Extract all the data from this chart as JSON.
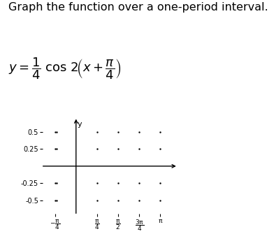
{
  "title": "Graph the function over a one-period interval.",
  "xlim": [
    -1.3,
    3.8
  ],
  "ylim": [
    -0.72,
    0.72
  ],
  "yticks": [
    0.5,
    0.25,
    -0.25,
    -0.5
  ],
  "xtick_values": [
    -0.7854,
    0.7854,
    1.5708,
    2.3562,
    3.1416
  ],
  "background_color": "#ffffff",
  "axis_color": "#000000",
  "title_fontsize": 11.5,
  "formula_fontsize": 12
}
